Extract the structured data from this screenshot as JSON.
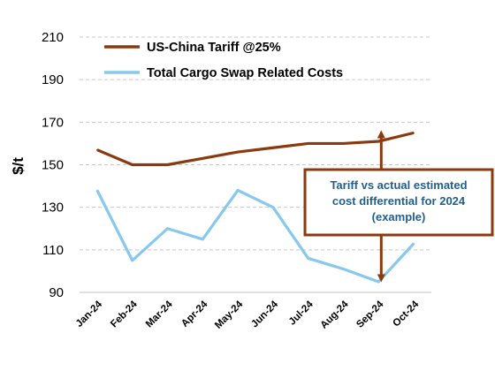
{
  "chart_data": {
    "type": "line",
    "title": "",
    "ylabel": "$/t",
    "xlabel": "",
    "categories": [
      "Jan-24",
      "Feb-24",
      "Mar-24",
      "Apr-24",
      "May-24",
      "Jun-24",
      "Jul-24",
      "Aug-24",
      "Sep-24",
      "Oct-24"
    ],
    "ylim": [
      90,
      210
    ],
    "yticks": [
      90,
      110,
      130,
      150,
      170,
      190,
      210
    ],
    "grid": "horizontal dashed",
    "legend_position": "top-left",
    "series": [
      {
        "name": "US-China Tariff @25%",
        "color": "#8B3A0F",
        "values": [
          157,
          150,
          150,
          153,
          156,
          158,
          160,
          160,
          161,
          165
        ]
      },
      {
        "name": "Total Cargo Swap Related Costs",
        "color": "#87C8EC",
        "values": [
          138,
          105,
          120,
          115,
          138,
          130,
          106,
          101,
          95,
          113
        ]
      }
    ],
    "annotation": {
      "text_lines": [
        "Tariff vs actual estimated",
        "cost differential for 2024",
        "(example)"
      ],
      "text_color": "#1F5F8F",
      "border_color": "#8B3A0F",
      "arrow_color": "#8B3A0F",
      "arrow_category": "Sep-24",
      "arrow_from": 95,
      "arrow_to": 166
    }
  }
}
